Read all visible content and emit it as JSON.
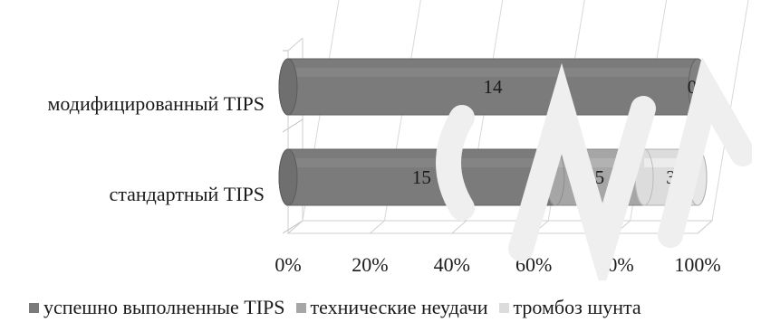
{
  "chart_data": {
    "type": "bar",
    "orientation": "horizontal",
    "stacked": "percent",
    "style": "3d-cylinder",
    "categories": [
      "модифицированный TIPS",
      "стандартный TIPS"
    ],
    "series": [
      {
        "name": "успешно выполненные TIPS",
        "values": [
          14,
          15
        ],
        "color": "#7b7b7b"
      },
      {
        "name": "технические неудачи",
        "values": [
          0,
          5
        ],
        "color": "#a6a6a6"
      },
      {
        "name": "тромбоз шунта",
        "values": [
          0,
          3
        ],
        "color": "#dcdcdc"
      }
    ],
    "data_labels": [
      [
        "14",
        "0",
        ""
      ],
      [
        "15",
        "5",
        "3"
      ]
    ],
    "x_ticks": [
      "0%",
      "20%",
      "40%",
      "60%",
      "80%",
      "100%"
    ],
    "xlim": [
      0,
      100
    ],
    "legend_position": "bottom",
    "grid": true
  }
}
